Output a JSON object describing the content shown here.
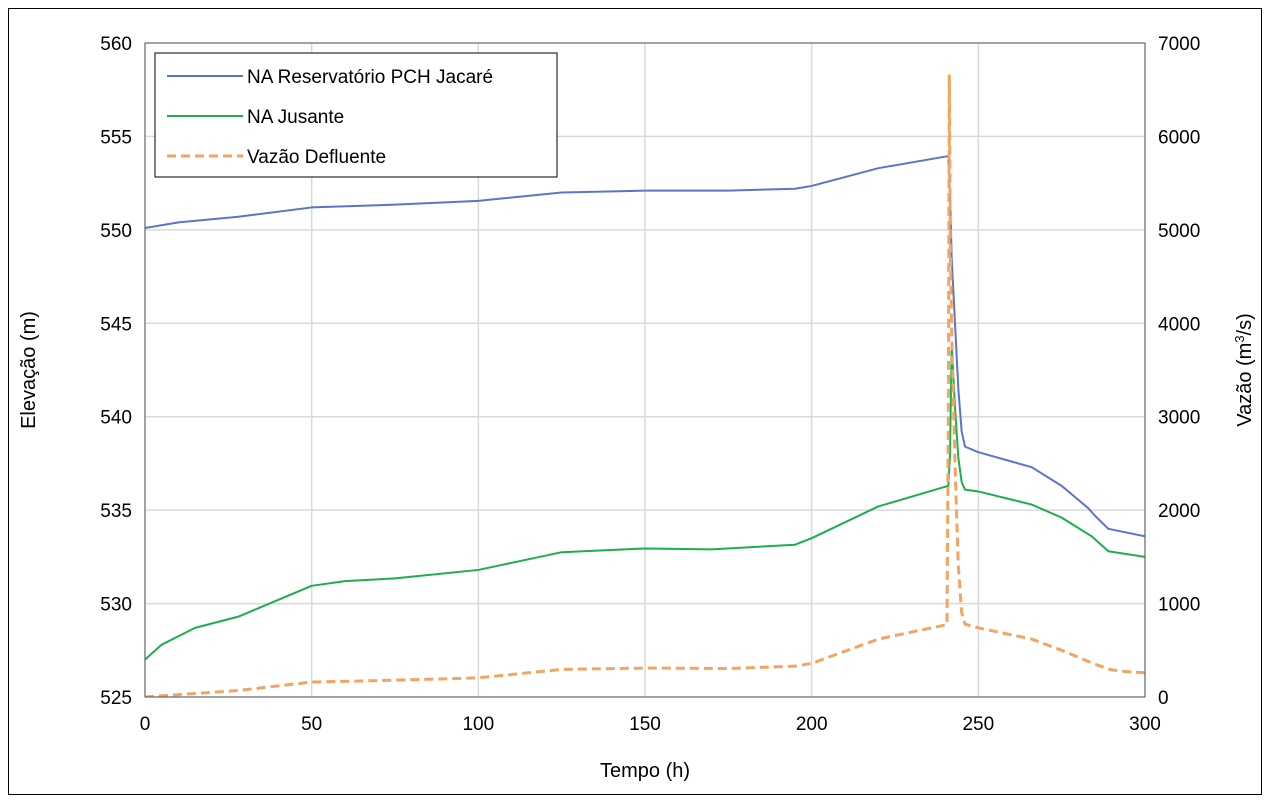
{
  "chart_data": {
    "type": "line",
    "title": "",
    "xlabel": "Tempo  (h)",
    "ylabel_left": "Elevação (m)",
    "ylabel_right_prefix": "Vazão (m",
    "ylabel_right_sup": "3",
    "ylabel_right_suffix": "/s)",
    "xlim": [
      0,
      300
    ],
    "ylim_left": [
      525,
      560
    ],
    "ylim_right": [
      0,
      7000
    ],
    "x_ticks": [
      0,
      50,
      100,
      150,
      200,
      250,
      300
    ],
    "y_left_ticks": [
      525,
      530,
      535,
      540,
      545,
      550,
      555,
      560
    ],
    "y_right_ticks": [
      0,
      1000,
      2000,
      3000,
      4000,
      5000,
      6000,
      7000
    ],
    "grid": true,
    "legend_position": "top-left",
    "series": [
      {
        "name": "NA Reservatório PCH Jacaré",
        "axis": "left",
        "color": "#5B74CC",
        "dash": "solid",
        "points": [
          [
            0,
            550.1
          ],
          [
            10,
            550.4
          ],
          [
            28,
            550.7
          ],
          [
            50,
            551.2
          ],
          [
            75,
            551.35
          ],
          [
            100,
            551.55
          ],
          [
            125,
            552.0
          ],
          [
            150,
            552.1
          ],
          [
            175,
            552.1
          ],
          [
            195,
            552.2
          ],
          [
            200,
            552.35
          ],
          [
            220,
            553.3
          ],
          [
            241,
            553.95
          ],
          [
            241.5,
            552.0
          ],
          [
            242,
            548.5
          ],
          [
            243,
            545.0
          ],
          [
            244,
            541.5
          ],
          [
            245,
            539.2
          ],
          [
            246,
            538.4
          ],
          [
            250,
            538.1
          ],
          [
            266,
            537.3
          ],
          [
            275,
            536.3
          ],
          [
            283,
            535.1
          ],
          [
            285,
            534.7
          ],
          [
            289,
            534.0
          ],
          [
            300,
            533.6
          ]
        ]
      },
      {
        "name": "NA Jusante",
        "axis": "left",
        "color": "#1EAE4C",
        "dash": "solid",
        "points": [
          [
            0,
            527.0
          ],
          [
            5,
            527.8
          ],
          [
            15,
            528.7
          ],
          [
            28,
            529.3
          ],
          [
            40,
            530.2
          ],
          [
            50,
            530.95
          ],
          [
            60,
            531.2
          ],
          [
            75,
            531.35
          ],
          [
            100,
            531.8
          ],
          [
            125,
            532.75
          ],
          [
            150,
            532.95
          ],
          [
            170,
            532.9
          ],
          [
            195,
            533.15
          ],
          [
            200,
            533.5
          ],
          [
            220,
            535.2
          ],
          [
            241,
            536.3
          ],
          [
            241.5,
            538.0
          ],
          [
            242,
            543.8
          ],
          [
            243,
            540.5
          ],
          [
            244,
            537.8
          ],
          [
            245,
            536.5
          ],
          [
            246,
            536.1
          ],
          [
            250,
            536.0
          ],
          [
            266,
            535.3
          ],
          [
            275,
            534.6
          ],
          [
            284,
            533.6
          ],
          [
            289,
            532.8
          ],
          [
            300,
            532.5
          ]
        ]
      },
      {
        "name": "Vazão Defluente",
        "axis": "right",
        "color": "#F4A460",
        "dash": "dashed",
        "points": [
          [
            0,
            0
          ],
          [
            10,
            25
          ],
          [
            28,
            70
          ],
          [
            50,
            160
          ],
          [
            75,
            180
          ],
          [
            100,
            205
          ],
          [
            125,
            295
          ],
          [
            150,
            310
          ],
          [
            175,
            305
          ],
          [
            195,
            330
          ],
          [
            200,
            360
          ],
          [
            220,
            620
          ],
          [
            240.6,
            775
          ],
          [
            241,
            3000
          ],
          [
            241.3,
            6650
          ],
          [
            241.6,
            4800
          ],
          [
            242,
            3900
          ],
          [
            243,
            2500
          ],
          [
            244,
            1400
          ],
          [
            245,
            900
          ],
          [
            246,
            780
          ],
          [
            250,
            740
          ],
          [
            266,
            620
          ],
          [
            275,
            500
          ],
          [
            285,
            350
          ],
          [
            290,
            290
          ],
          [
            295,
            270
          ],
          [
            300,
            260
          ]
        ]
      }
    ]
  }
}
